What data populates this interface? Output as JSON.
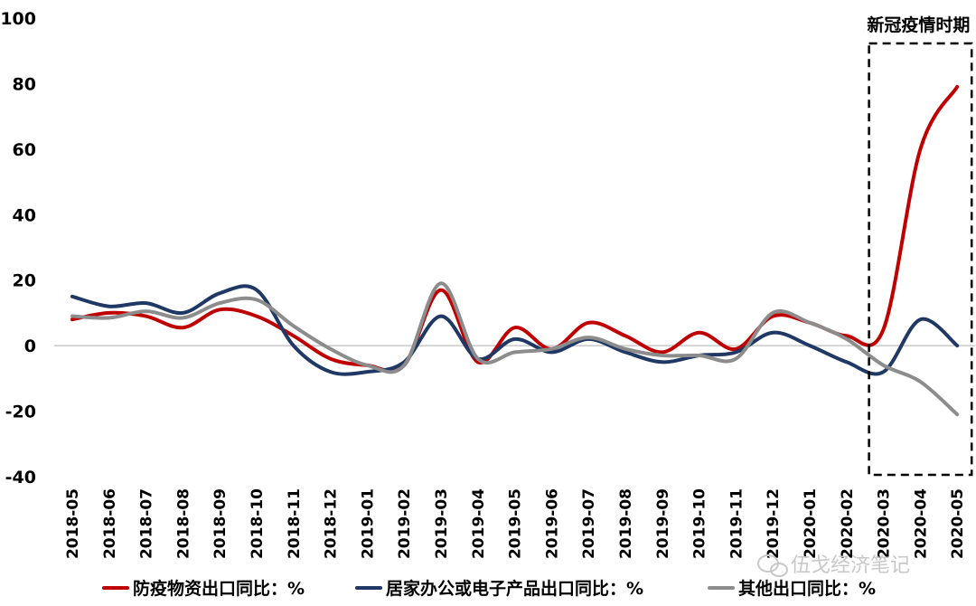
{
  "chart_data": {
    "type": "line",
    "title": "",
    "xlabel": "",
    "ylabel": "",
    "ylim": [
      -40,
      100
    ],
    "yticks": [
      100,
      80,
      60,
      40,
      20,
      0,
      -20,
      -40
    ],
    "categories": [
      "2018-05",
      "2018-06",
      "2018-07",
      "2018-08",
      "2018-09",
      "2018-10",
      "2018-11",
      "2018-12",
      "2019-01",
      "2019-02",
      "2019-03",
      "2019-04",
      "2019-05",
      "2019-06",
      "2019-07",
      "2019-08",
      "2019-09",
      "2019-10",
      "2019-11",
      "2019-12",
      "2020-01",
      "2020-02",
      "2020-03",
      "2020-04",
      "2020-05"
    ],
    "series": [
      {
        "name": "防疫物资出口同比：%",
        "color": "#c00000",
        "values": [
          8,
          10,
          9,
          5.5,
          11,
          9,
          3,
          -4,
          -6,
          -6,
          17,
          -5,
          5.5,
          -1,
          7,
          3,
          -2,
          4,
          -1,
          9,
          7,
          3,
          5,
          60,
          79
        ]
      },
      {
        "name": "居家办公或电子产品出口同比：%",
        "color": "#1f3864",
        "values": [
          15,
          12,
          13,
          10,
          16,
          17,
          0,
          -8,
          -8,
          -5,
          9,
          -4,
          2,
          -2,
          2,
          -2,
          -5,
          -3,
          -2,
          4,
          0,
          -5,
          -8,
          8,
          0
        ]
      },
      {
        "name": "其他出口同比：%",
        "color": "#8c8c8c",
        "values": [
          9,
          8.5,
          10.5,
          8.5,
          13,
          14,
          6,
          -1,
          -6,
          -6,
          19,
          -4,
          -2,
          -1,
          2.5,
          -1,
          -3,
          -3,
          -4,
          10,
          7,
          2,
          -6,
          -11,
          -21
        ]
      }
    ],
    "annotation": {
      "label": "新冠疫情时期",
      "from": "2020-03",
      "to": "2020-05"
    },
    "legend_position": "bottom",
    "grid": false
  },
  "watermark": "伍戈经济笔记"
}
